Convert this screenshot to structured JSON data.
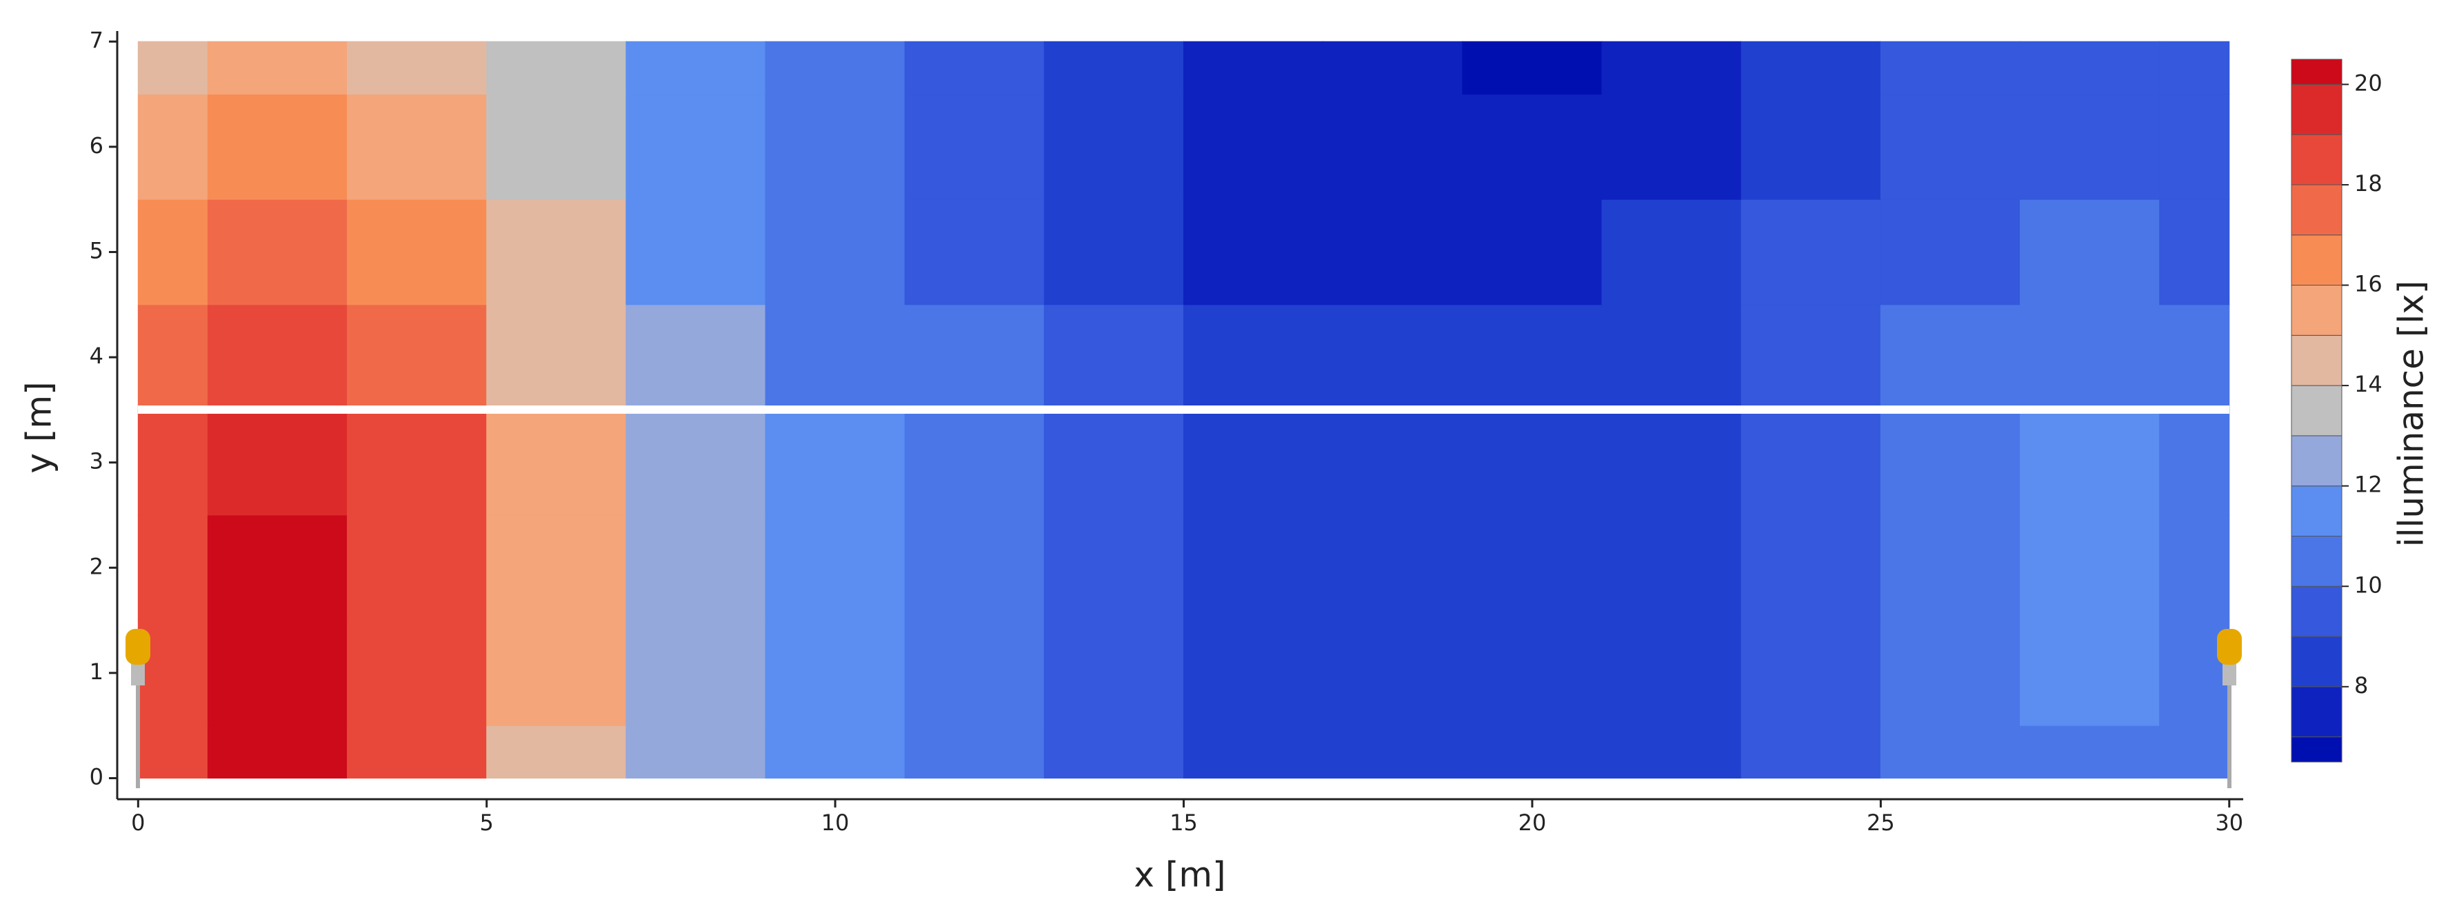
{
  "chart_data": {
    "type": "contour",
    "xlabel": "x [m]",
    "ylabel": "y [m]",
    "colorbar_label": "illuminance [lx]",
    "xlim": [
      -0.3,
      30.2
    ],
    "xticks": [
      0,
      5,
      10,
      15,
      20,
      25,
      30
    ],
    "ylim": [
      -0.2,
      7.1
    ],
    "yticks": [
      0,
      1,
      2,
      3,
      4,
      5,
      6,
      7
    ],
    "x": [
      0,
      2,
      4,
      6,
      8,
      10,
      12,
      14,
      16,
      18,
      20,
      22,
      24,
      26,
      28,
      30
    ],
    "y": [
      0,
      1,
      2,
      3,
      4,
      5,
      6,
      7
    ],
    "z": [
      [
        18.5,
        20.2,
        18,
        14.5,
        12.5,
        11,
        10.5,
        9.5,
        8.5,
        8.5,
        8.5,
        8.5,
        9.5,
        10.5,
        10.8,
        10.3
      ],
      [
        18.5,
        20.3,
        18.5,
        15.5,
        12.5,
        11.5,
        10.5,
        9.6,
        8.6,
        8.5,
        8.5,
        8.6,
        9.6,
        10.8,
        11.5,
        10.5
      ],
      [
        18.5,
        20.3,
        18.8,
        15.8,
        12.8,
        11.5,
        10.5,
        9.5,
        8.7,
        8.5,
        8.5,
        8.6,
        9.6,
        10.8,
        11.5,
        10.5
      ],
      [
        18.3,
        19.5,
        18.2,
        15.5,
        12.8,
        11.2,
        10.2,
        9.3,
        8.6,
        8.5,
        8.5,
        8.6,
        9.5,
        10.5,
        11.2,
        10.3
      ],
      [
        17.8,
        18.5,
        17.3,
        14.5,
        12.5,
        10.8,
        10,
        9.2,
        8.8,
        8.6,
        8.6,
        8.8,
        9.5,
        10.4,
        10.6,
        10
      ],
      [
        16.8,
        17.5,
        16.5,
        14,
        11.5,
        10.5,
        9.5,
        8.6,
        7.8,
        7.7,
        7.7,
        8,
        9,
        9.8,
        10,
        9.5
      ],
      [
        15.5,
        16.5,
        15.5,
        13.5,
        11.2,
        10.2,
        9.2,
        8.3,
        7.5,
        7.5,
        7.5,
        7.8,
        8.8,
        9.5,
        9.8,
        9.3
      ],
      [
        14.5,
        15,
        14.8,
        13,
        11,
        10,
        9,
        8.2,
        7.5,
        7.3,
        6.9,
        7.2,
        8.6,
        9.3,
        9.5,
        9
      ]
    ],
    "levels": [
      6.5,
      7,
      8,
      9,
      10,
      11,
      12,
      13,
      14,
      15,
      16,
      17,
      18,
      19,
      20,
      20.5
    ],
    "colors": [
      "#0010b0",
      "#0e22c0",
      "#2040d0",
      "#3558dc",
      "#4a76e8",
      "#5b8ef0",
      "#94a8dc",
      "#c0c0c0",
      "#e2b8a0",
      "#f4a57a",
      "#f88c55",
      "#f06a4a",
      "#e8483a",
      "#dc2a2a",
      "#cc0a1a"
    ],
    "cticks": [
      8,
      10,
      12,
      14,
      16,
      18,
      20
    ]
  }
}
